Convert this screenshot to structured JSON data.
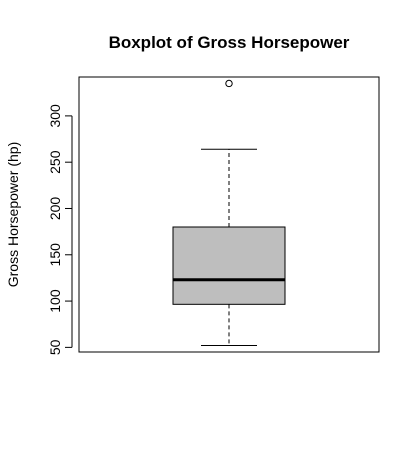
{
  "chart_data": {
    "type": "boxplot",
    "title": "Boxplot of Gross Horsepower",
    "xlabel": "",
    "ylabel": "Gross Horsepower (hp)",
    "ylim": [
      45,
      342
    ],
    "yticks": [
      50,
      100,
      150,
      200,
      250,
      300
    ],
    "ytick_labels": [
      "50",
      "100",
      "150",
      "200",
      "250",
      "300"
    ],
    "box": {
      "min": 52,
      "q1": 96.5,
      "median": 123,
      "q3": 180,
      "max": 264,
      "fill_color": "#bebebe"
    },
    "outliers": [
      335
    ],
    "grid": false,
    "legend": "none"
  }
}
